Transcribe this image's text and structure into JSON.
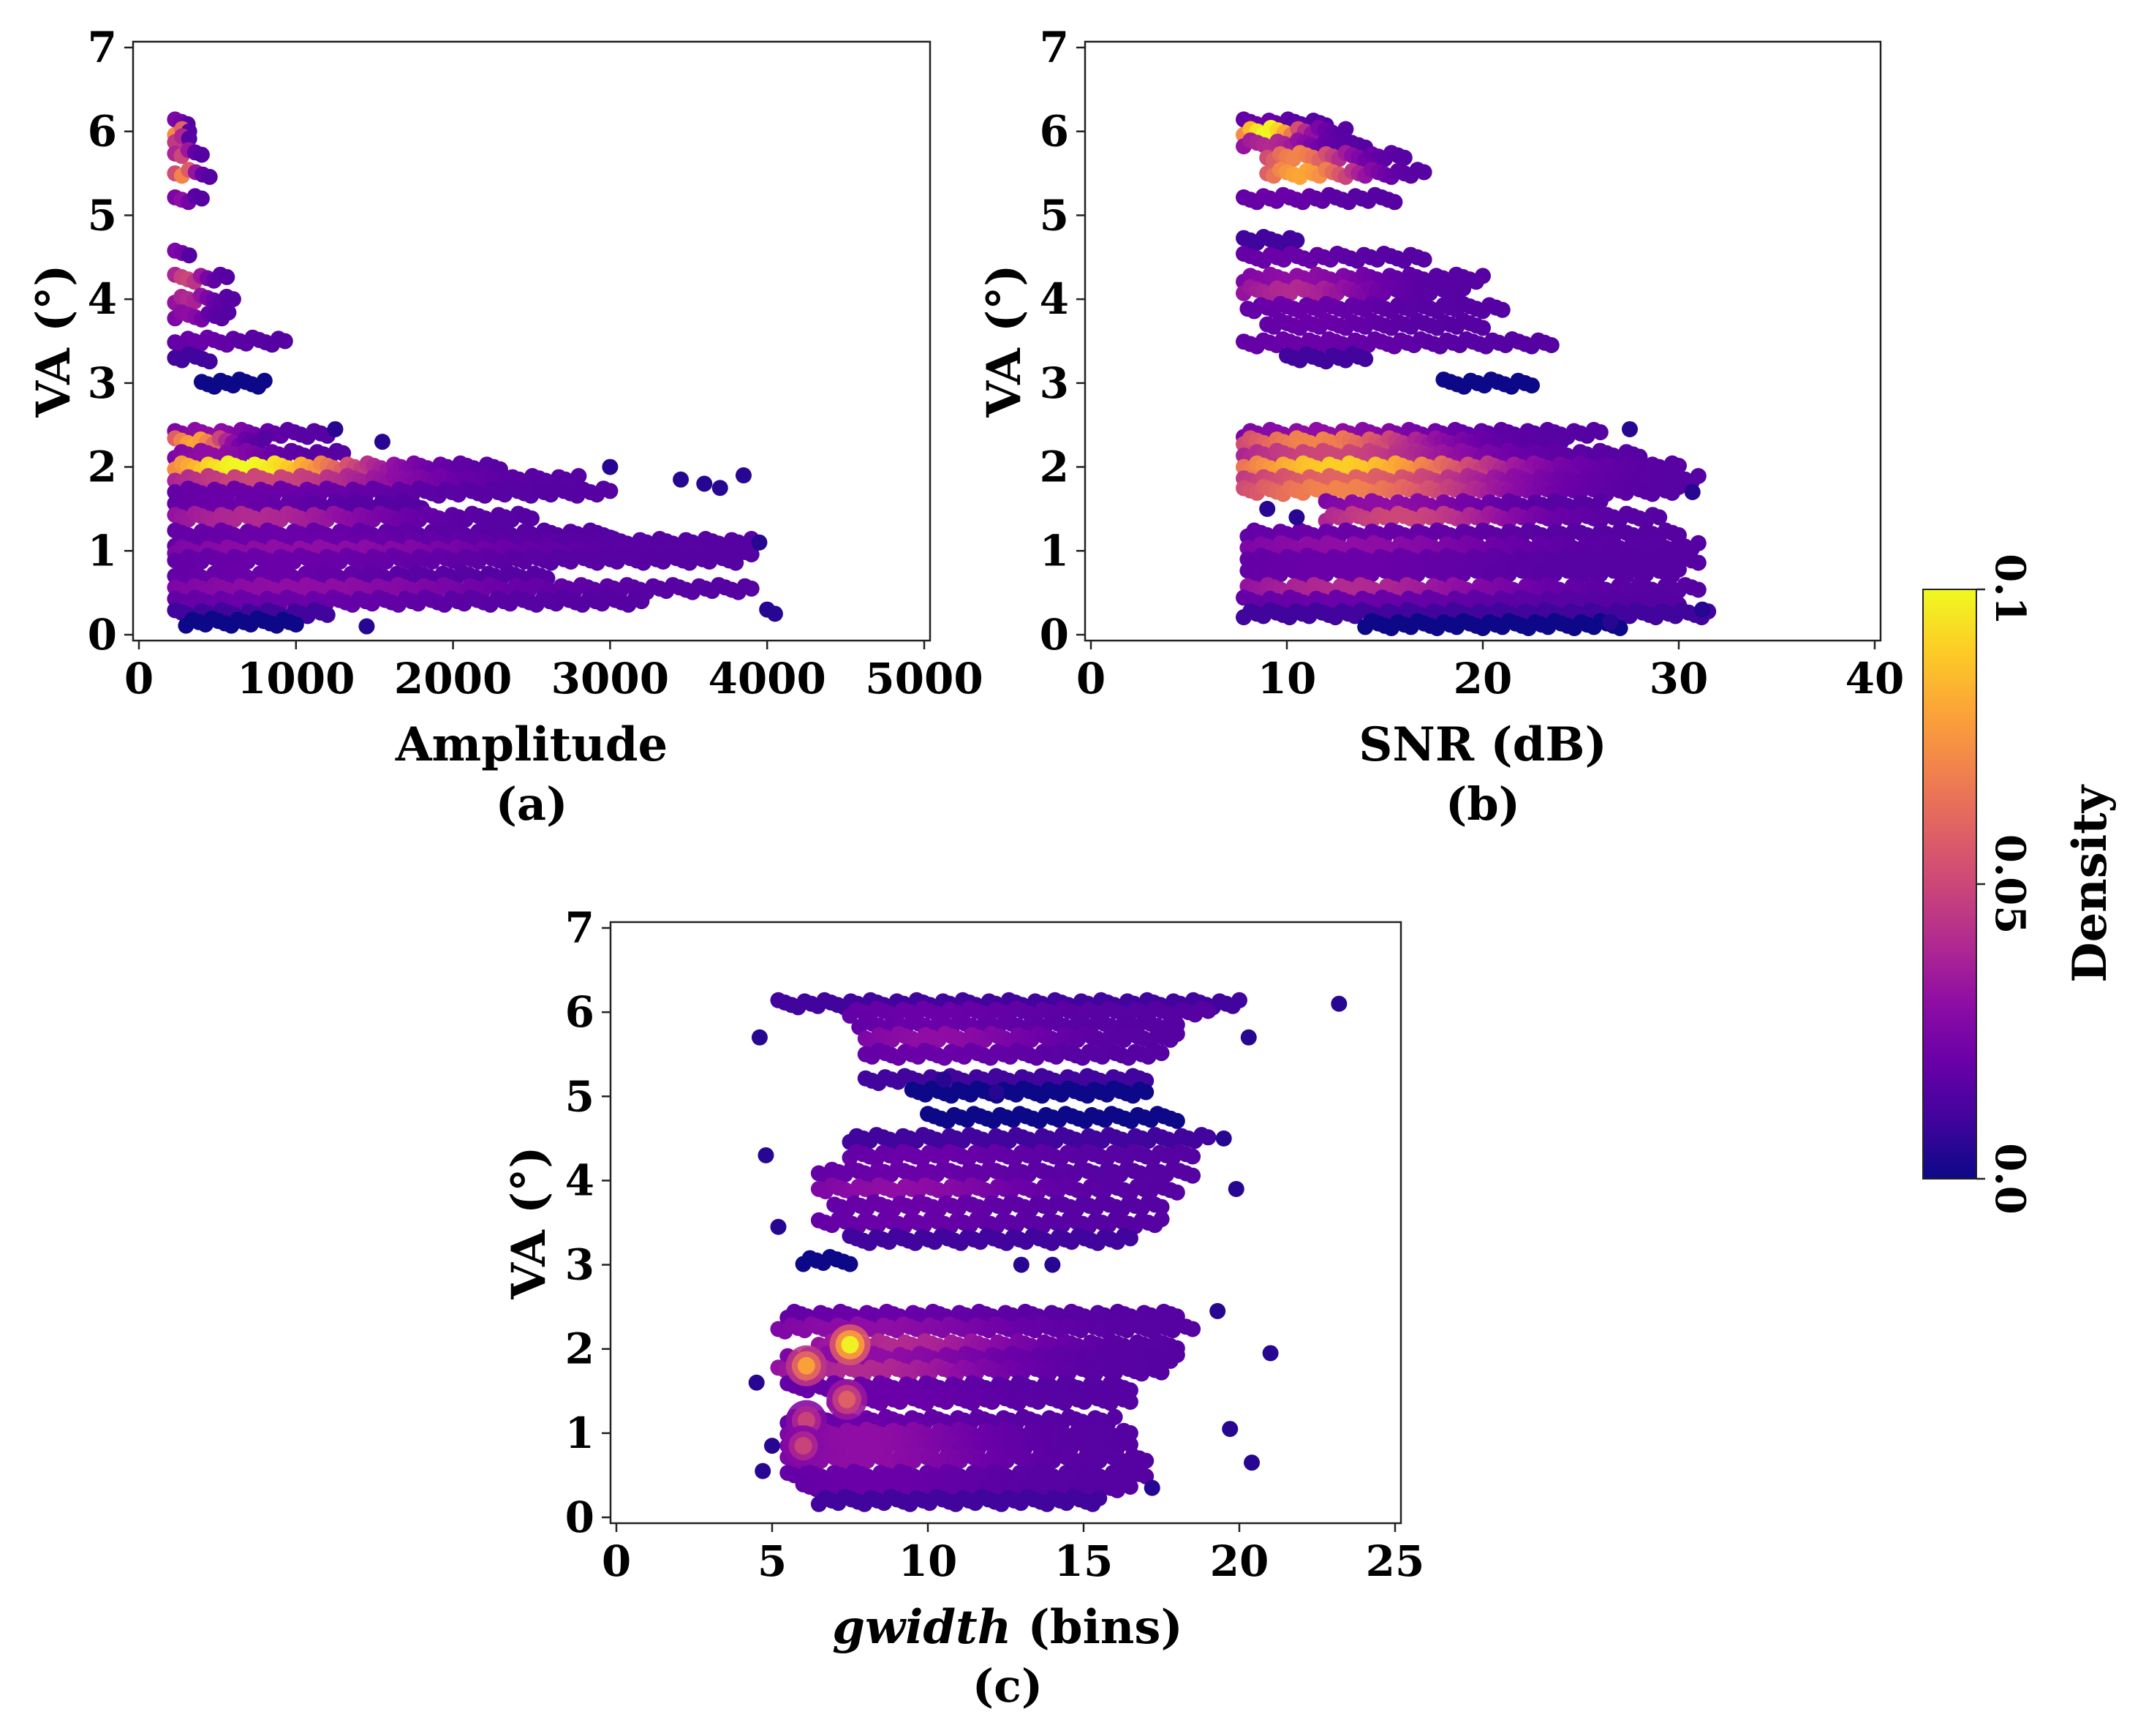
{
  "colors": {
    "background": "#ffffff",
    "axis": "#222222",
    "colormap": [
      "#0d0887",
      "#41049d",
      "#6a00a8",
      "#8f0da4",
      "#b12a90",
      "#cc4778",
      "#e16462",
      "#f2844b",
      "#fca636",
      "#fcce25",
      "#f0f921"
    ]
  },
  "colorbar": {
    "label": "Density",
    "min": 0.0,
    "max": 0.1,
    "ticks": [
      {
        "value": 0.0,
        "label": "0.0"
      },
      {
        "value": 0.05,
        "label": "0.05"
      },
      {
        "value": 0.1,
        "label": "0.1"
      }
    ]
  },
  "chart_data": [
    {
      "id": "a",
      "type": "scatter",
      "caption": "(a)",
      "xlabel": "Amplitude",
      "xlabel_italic_part": "",
      "xlabel_rest": "",
      "ylabel": "VA (°)",
      "xlim": [
        0,
        5000
      ],
      "ylim": [
        0,
        7
      ],
      "xticks": [
        {
          "v": 0,
          "label": "0"
        },
        {
          "v": 1000,
          "label": "1000"
        },
        {
          "v": 2000,
          "label": "2000"
        },
        {
          "v": 3000,
          "label": "3000"
        },
        {
          "v": 4000,
          "label": "4000"
        },
        {
          "v": 5000,
          "label": "5000"
        }
      ],
      "yticks": [
        {
          "v": 0,
          "label": "0"
        },
        {
          "v": 1,
          "label": "1"
        },
        {
          "v": 2,
          "label": "2"
        },
        {
          "v": 3,
          "label": "3"
        },
        {
          "v": 4,
          "label": "4"
        },
        {
          "v": 5,
          "label": "5"
        },
        {
          "v": 6,
          "label": "6"
        },
        {
          "v": 7,
          "label": "7"
        }
      ],
      "bands": [
        {
          "y": 6.1,
          "x0": 230,
          "x1": 310,
          "density": 0.03
        },
        {
          "y": 6.0,
          "x0": 230,
          "x1": 320,
          "density": 0.1
        },
        {
          "y": 5.9,
          "x0": 230,
          "x1": 320,
          "density": 0.06
        },
        {
          "y": 5.75,
          "x0": 230,
          "x1": 400,
          "density": 0.05
        },
        {
          "y": 5.5,
          "x0": 230,
          "x1": 450,
          "density": 0.07
        },
        {
          "y": 5.2,
          "x0": 230,
          "x1": 400,
          "density": 0.03
        },
        {
          "y": 4.55,
          "x0": 230,
          "x1": 320,
          "density": 0.03
        },
        {
          "y": 4.25,
          "x0": 230,
          "x1": 560,
          "density": 0.05
        },
        {
          "y": 4.0,
          "x0": 230,
          "x1": 600,
          "density": 0.04
        },
        {
          "y": 3.8,
          "x0": 230,
          "x1": 570,
          "density": 0.03
        },
        {
          "y": 3.5,
          "x0": 230,
          "x1": 930,
          "density": 0.02
        },
        {
          "y": 3.3,
          "x0": 230,
          "x1": 450,
          "density": 0.01
        },
        {
          "y": 3.0,
          "x0": 400,
          "x1": 800,
          "density": 0.0
        },
        {
          "y": 2.4,
          "x0": 230,
          "x1": 1200,
          "density": 0.03
        },
        {
          "y": 2.3,
          "x0": 230,
          "x1": 800,
          "density": 0.08
        },
        {
          "y": 2.15,
          "x0": 230,
          "x1": 1300,
          "density": 0.03
        },
        {
          "y": 2.0,
          "x0": 230,
          "x1": 2300,
          "density": 0.1
        },
        {
          "y": 1.85,
          "x0": 230,
          "x1": 2800,
          "density": 0.05
        },
        {
          "y": 1.7,
          "x0": 230,
          "x1": 3000,
          "density": 0.02
        },
        {
          "y": 1.55,
          "x0": 230,
          "x1": 1800,
          "density": 0.02
        },
        {
          "y": 1.4,
          "x0": 230,
          "x1": 2500,
          "density": 0.04
        },
        {
          "y": 1.2,
          "x0": 230,
          "x1": 3000,
          "density": 0.02
        },
        {
          "y": 1.1,
          "x0": 230,
          "x1": 3900,
          "density": 0.02
        },
        {
          "y": 1.0,
          "x0": 230,
          "x1": 3900,
          "density": 0.03
        },
        {
          "y": 0.9,
          "x0": 230,
          "x1": 3800,
          "density": 0.02
        },
        {
          "y": 0.7,
          "x0": 230,
          "x1": 2600,
          "density": 0.02
        },
        {
          "y": 0.55,
          "x0": 230,
          "x1": 3900,
          "density": 0.03
        },
        {
          "y": 0.4,
          "x0": 230,
          "x1": 3200,
          "density": 0.02
        },
        {
          "y": 0.25,
          "x0": 230,
          "x1": 1200,
          "density": 0.01
        },
        {
          "y": 0.15,
          "x0": 300,
          "x1": 1000,
          "density": 0.0
        }
      ],
      "outliers": [
        [
          4000,
          0.3
        ],
        [
          4050,
          0.25
        ],
        [
          3850,
          1.9
        ],
        [
          3700,
          1.75
        ],
        [
          3450,
          1.85
        ],
        [
          3950,
          1.1
        ],
        [
          1450,
          0.1
        ],
        [
          1250,
          2.45
        ],
        [
          1550,
          2.3
        ],
        [
          3600,
          1.8
        ],
        [
          3000,
          2.0
        ]
      ]
    },
    {
      "id": "b",
      "type": "scatter",
      "caption": "(b)",
      "xlabel": "SNR (dB)",
      "xlabel_italic_part": "",
      "xlabel_rest": "",
      "ylabel": "VA (°)",
      "xlim": [
        0,
        40
      ],
      "ylim": [
        0,
        7
      ],
      "xticks": [
        {
          "v": 0,
          "label": "0"
        },
        {
          "v": 10,
          "label": "10"
        },
        {
          "v": 20,
          "label": "20"
        },
        {
          "v": 30,
          "label": "30"
        },
        {
          "v": 40,
          "label": "40"
        }
      ],
      "yticks": [
        {
          "v": 0,
          "label": "0"
        },
        {
          "v": 1,
          "label": "1"
        },
        {
          "v": 2,
          "label": "2"
        },
        {
          "v": 3,
          "label": "3"
        },
        {
          "v": 4,
          "label": "4"
        },
        {
          "v": 5,
          "label": "5"
        },
        {
          "v": 6,
          "label": "6"
        },
        {
          "v": 7,
          "label": "7"
        }
      ],
      "bands": [
        {
          "y": 6.1,
          "x0": 7.8,
          "x1": 12,
          "density": 0.02
        },
        {
          "y": 6.0,
          "x0": 7.8,
          "x1": 13,
          "density": 0.1
        },
        {
          "y": 5.85,
          "x0": 7.8,
          "x1": 14,
          "density": 0.04
        },
        {
          "y": 5.7,
          "x0": 9,
          "x1": 16,
          "density": 0.07
        },
        {
          "y": 5.5,
          "x0": 9,
          "x1": 17,
          "density": 0.08
        },
        {
          "y": 5.2,
          "x0": 7.8,
          "x1": 15.5,
          "density": 0.02
        },
        {
          "y": 4.7,
          "x0": 7.8,
          "x1": 10.5,
          "density": 0.01
        },
        {
          "y": 4.5,
          "x0": 7.8,
          "x1": 17,
          "density": 0.02
        },
        {
          "y": 4.25,
          "x0": 7.8,
          "x1": 20,
          "density": 0.03
        },
        {
          "y": 4.1,
          "x0": 7.8,
          "x1": 19,
          "density": 0.04
        },
        {
          "y": 3.9,
          "x0": 8,
          "x1": 21,
          "density": 0.02
        },
        {
          "y": 3.7,
          "x0": 9,
          "x1": 20,
          "density": 0.02
        },
        {
          "y": 3.48,
          "x0": 7.8,
          "x1": 23.5,
          "density": 0.02
        },
        {
          "y": 3.3,
          "x0": 10,
          "x1": 14,
          "density": 0.01
        },
        {
          "y": 3.0,
          "x0": 18,
          "x1": 22.5,
          "density": 0.0
        },
        {
          "y": 2.4,
          "x0": 7.8,
          "x1": 26,
          "density": 0.03
        },
        {
          "y": 2.3,
          "x0": 7.8,
          "x1": 24,
          "density": 0.07
        },
        {
          "y": 2.15,
          "x0": 7.8,
          "x1": 28,
          "density": 0.05
        },
        {
          "y": 2.0,
          "x0": 7.8,
          "x1": 30,
          "density": 0.09
        },
        {
          "y": 1.85,
          "x0": 7.8,
          "x1": 31,
          "density": 0.06
        },
        {
          "y": 1.72,
          "x0": 7.8,
          "x1": 30,
          "density": 0.07
        },
        {
          "y": 1.55,
          "x0": 12,
          "x1": 26,
          "density": 0.03
        },
        {
          "y": 1.4,
          "x0": 12,
          "x1": 29,
          "density": 0.05
        },
        {
          "y": 1.2,
          "x0": 8,
          "x1": 30,
          "density": 0.02
        },
        {
          "y": 1.05,
          "x0": 8,
          "x1": 31,
          "density": 0.03
        },
        {
          "y": 0.9,
          "x0": 8,
          "x1": 31,
          "density": 0.02
        },
        {
          "y": 0.75,
          "x0": 8,
          "x1": 30,
          "density": 0.02
        },
        {
          "y": 0.55,
          "x0": 8,
          "x1": 31,
          "density": 0.04
        },
        {
          "y": 0.4,
          "x0": 7.8,
          "x1": 30,
          "density": 0.02
        },
        {
          "y": 0.25,
          "x0": 7.8,
          "x1": 31.5,
          "density": 0.01
        },
        {
          "y": 0.12,
          "x0": 14,
          "x1": 27,
          "density": 0.0
        }
      ],
      "outliers": [
        [
          31.2,
          0.3
        ],
        [
          30.7,
          1.7
        ],
        [
          27.5,
          2.45
        ],
        [
          26.5,
          0.15
        ],
        [
          9.0,
          1.5
        ],
        [
          10.5,
          1.4
        ]
      ]
    },
    {
      "id": "c",
      "type": "scatter",
      "caption": "(c)",
      "xlabel": "gwidth (bins)",
      "xlabel_italic_part": "gwidth",
      "xlabel_rest": " (bins)",
      "ylabel": "VA (°)",
      "xlim": [
        0,
        25
      ],
      "ylim": [
        0,
        7
      ],
      "xticks": [
        {
          "v": 0,
          "label": "0"
        },
        {
          "v": 5,
          "label": "5"
        },
        {
          "v": 10,
          "label": "10"
        },
        {
          "v": 15,
          "label": "15"
        },
        {
          "v": 20,
          "label": "20"
        },
        {
          "v": 25,
          "label": "25"
        }
      ],
      "yticks": [
        {
          "v": 0,
          "label": "0"
        },
        {
          "v": 1,
          "label": "1"
        },
        {
          "v": 2,
          "label": "2"
        },
        {
          "v": 3,
          "label": "3"
        },
        {
          "v": 4,
          "label": "4"
        },
        {
          "v": 5,
          "label": "5"
        },
        {
          "v": 6,
          "label": "6"
        },
        {
          "v": 7,
          "label": "7"
        }
      ],
      "bands": [
        {
          "y": 6.1,
          "x0": 5.2,
          "x1": 20,
          "density": 0.01
        },
        {
          "y": 6.0,
          "x0": 7.5,
          "x1": 19,
          "density": 0.02
        },
        {
          "y": 5.85,
          "x0": 7.8,
          "x1": 18,
          "density": 0.02
        },
        {
          "y": 5.7,
          "x0": 8,
          "x1": 18,
          "density": 0.03
        },
        {
          "y": 5.5,
          "x0": 8,
          "x1": 17.5,
          "density": 0.02
        },
        {
          "y": 5.2,
          "x0": 8,
          "x1": 17,
          "density": 0.01
        },
        {
          "y": 5.05,
          "x0": 9.5,
          "x1": 17,
          "density": 0.0
        },
        {
          "y": 4.75,
          "x0": 10,
          "x1": 18,
          "density": 0.0
        },
        {
          "y": 4.5,
          "x0": 7.5,
          "x1": 19,
          "density": 0.01
        },
        {
          "y": 4.3,
          "x0": 7.5,
          "x1": 18.5,
          "density": 0.02
        },
        {
          "y": 4.1,
          "x0": 6.5,
          "x1": 18.5,
          "density": 0.02
        },
        {
          "y": 3.9,
          "x0": 6.5,
          "x1": 18,
          "density": 0.03
        },
        {
          "y": 3.7,
          "x0": 7,
          "x1": 17.5,
          "density": 0.02
        },
        {
          "y": 3.5,
          "x0": 6.5,
          "x1": 17.5,
          "density": 0.02
        },
        {
          "y": 3.3,
          "x0": 7.5,
          "x1": 16.5,
          "density": 0.01
        },
        {
          "y": 3.05,
          "x0": 6,
          "x1": 7.5,
          "density": 0.0
        },
        {
          "y": 2.4,
          "x0": 5.5,
          "x1": 18,
          "density": 0.02
        },
        {
          "y": 2.25,
          "x0": 5.2,
          "x1": 18.5,
          "density": 0.03
        },
        {
          "y": 2.05,
          "x0": 6.5,
          "x1": 18,
          "density": 0.04
        },
        {
          "y": 1.9,
          "x0": 5.5,
          "x1": 18,
          "density": 0.03
        },
        {
          "y": 1.75,
          "x0": 5.2,
          "x1": 17.5,
          "density": 0.04
        },
        {
          "y": 1.55,
          "x0": 5.5,
          "x1": 16.5,
          "density": 0.02
        },
        {
          "y": 1.4,
          "x0": 7,
          "x1": 16.5,
          "density": 0.02
        },
        {
          "y": 1.15,
          "x0": 5.5,
          "x1": 16,
          "density": 0.02
        },
        {
          "y": 1.0,
          "x0": 5.5,
          "x1": 16.5,
          "density": 0.03
        },
        {
          "y": 0.85,
          "x0": 5.5,
          "x1": 16.5,
          "density": 0.03
        },
        {
          "y": 0.7,
          "x0": 5.5,
          "x1": 17,
          "density": 0.03
        },
        {
          "y": 0.5,
          "x0": 5.5,
          "x1": 17,
          "density": 0.02
        },
        {
          "y": 0.35,
          "x0": 6,
          "x1": 16.5,
          "density": 0.02
        },
        {
          "y": 0.2,
          "x0": 6.5,
          "x1": 15.5,
          "density": 0.01
        }
      ],
      "hotspots": [
        {
          "x": 7.5,
          "y": 2.05,
          "density": 0.1
        },
        {
          "x": 6.1,
          "y": 1.8,
          "density": 0.08
        },
        {
          "x": 7.4,
          "y": 1.4,
          "density": 0.06
        },
        {
          "x": 6.1,
          "y": 1.15,
          "density": 0.05
        },
        {
          "x": 6.0,
          "y": 0.85,
          "density": 0.05
        }
      ],
      "outliers": [
        [
          23.2,
          6.1
        ],
        [
          20.4,
          0.65
        ],
        [
          21.0,
          1.95
        ],
        [
          19.7,
          1.05
        ],
        [
          19.9,
          3.9
        ],
        [
          19.5,
          4.5
        ],
        [
          20.3,
          5.7
        ],
        [
          19.3,
          2.45
        ],
        [
          5.0,
          0.85
        ],
        [
          4.7,
          0.55
        ],
        [
          4.5,
          1.6
        ],
        [
          4.8,
          4.3
        ],
        [
          5.2,
          3.45
        ],
        [
          4.6,
          5.7
        ],
        [
          17.2,
          0.35
        ],
        [
          13,
          3.0
        ],
        [
          14,
          3.0
        ],
        [
          10.5,
          5.2
        ],
        [
          12.2,
          5.05
        ]
      ]
    }
  ]
}
